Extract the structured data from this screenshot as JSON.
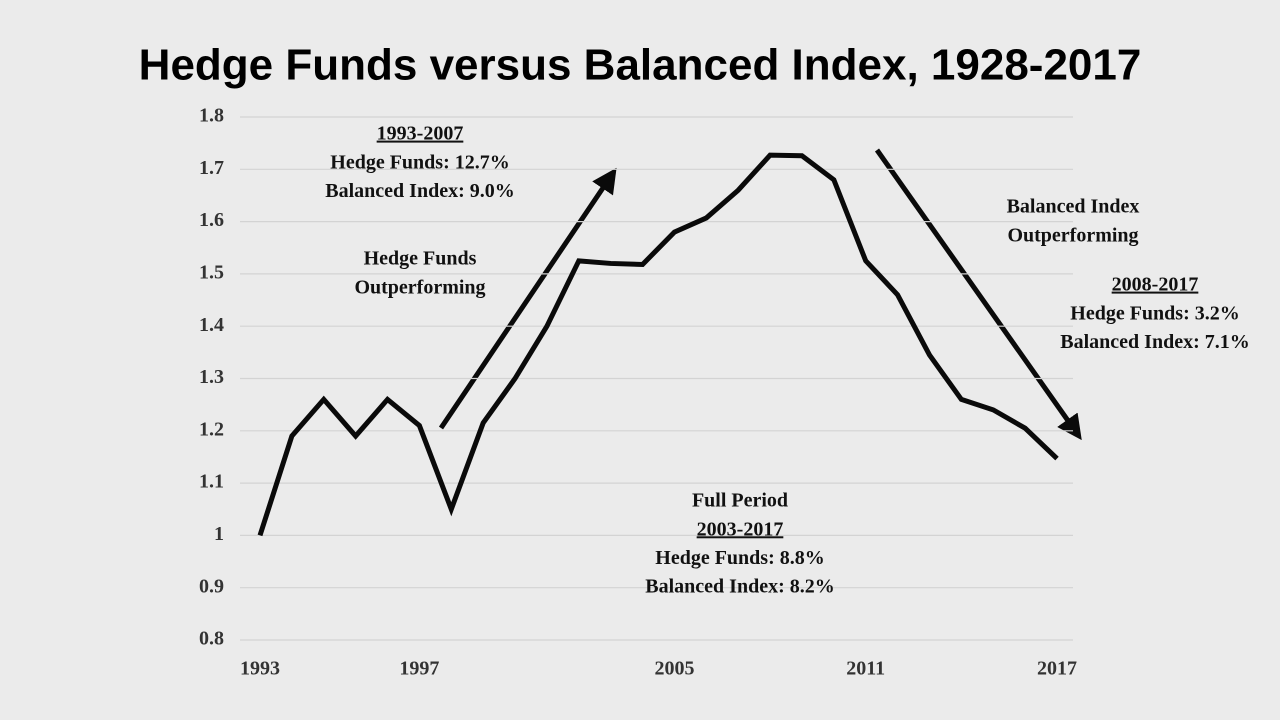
{
  "chart_data": {
    "type": "line",
    "title": "Hedge Funds versus Balanced Index, 1928-2017",
    "categories": [
      "1993",
      null,
      null,
      null,
      null,
      "1997",
      null,
      null,
      null,
      null,
      null,
      null,
      null,
      "2005",
      null,
      null,
      null,
      null,
      null,
      "2011",
      null,
      null,
      null,
      null,
      null,
      "2017"
    ],
    "series": [
      {
        "color": "#0a0a0a",
        "values": [
          1.0,
          1.19,
          1.26,
          1.19,
          1.26,
          1.21,
          1.05,
          1.215,
          1.3,
          1.4,
          1.525,
          1.52,
          1.518,
          1.58,
          1.607,
          1.66,
          1.727,
          1.726,
          1.68,
          1.525,
          1.46,
          1.345,
          1.26,
          1.24,
          1.205,
          1.147
        ]
      }
    ],
    "ylim": [
      0.8,
      1.8
    ],
    "yticks": [
      0.8,
      0.9,
      1,
      1.1,
      1.2,
      1.3,
      1.4,
      1.5,
      1.6,
      1.7,
      1.8
    ],
    "grid": true,
    "annotations": [
      {
        "lines": [
          "1993-2007",
          "Hedge Funds: 12.7%",
          "Balanced Index: 9.0%"
        ]
      },
      {
        "lines": [
          "Hedge Funds",
          "Outperforming"
        ]
      },
      {
        "lines": [
          "Full Period",
          "2003-2017",
          "Hedge Funds: 8.8%",
          "Balanced Index: 8.2%"
        ]
      },
      {
        "lines": [
          "Balanced Index",
          "Outperforming"
        ]
      },
      {
        "lines": [
          "2008-2017",
          "Hedge Funds: 3.2%",
          "Balanced Index: 7.1%"
        ]
      }
    ]
  }
}
